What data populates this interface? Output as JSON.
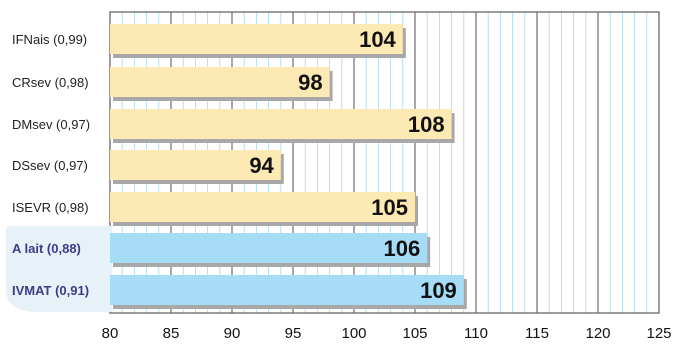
{
  "chart_data": {
    "type": "bar",
    "orientation": "horizontal",
    "categories": [
      "IFNais (0,99)",
      "CRsev (0,98)",
      "DMsev (0,97)",
      "DSsev (0,97)",
      "ISEVR (0,98)",
      "A lait (0,88)",
      "IVMAT (0,91)"
    ],
    "values": [
      104,
      98,
      108,
      94,
      105,
      106,
      109
    ],
    "value_labels": [
      "104",
      "98",
      "108",
      "94",
      "105",
      "106",
      "109"
    ],
    "highlighted": [
      false,
      false,
      false,
      false,
      false,
      true,
      true
    ],
    "xlim": [
      80,
      125
    ],
    "xticks": [
      "80",
      "85",
      "90",
      "95",
      "100",
      "105",
      "110",
      "115",
      "120",
      "125"
    ],
    "grid": true,
    "title": "",
    "xlabel": "",
    "ylabel": "",
    "colors": {
      "bar": "#fde9b4",
      "bar_highlight": "#a6dcf5",
      "shadow": "#a8a8a8",
      "label_highlight": "#3b3d8a",
      "label_bg_highlight": "#e6f1f8",
      "grid_major": "#7a7a7a",
      "grid_minor": "#a6d8ec"
    }
  }
}
